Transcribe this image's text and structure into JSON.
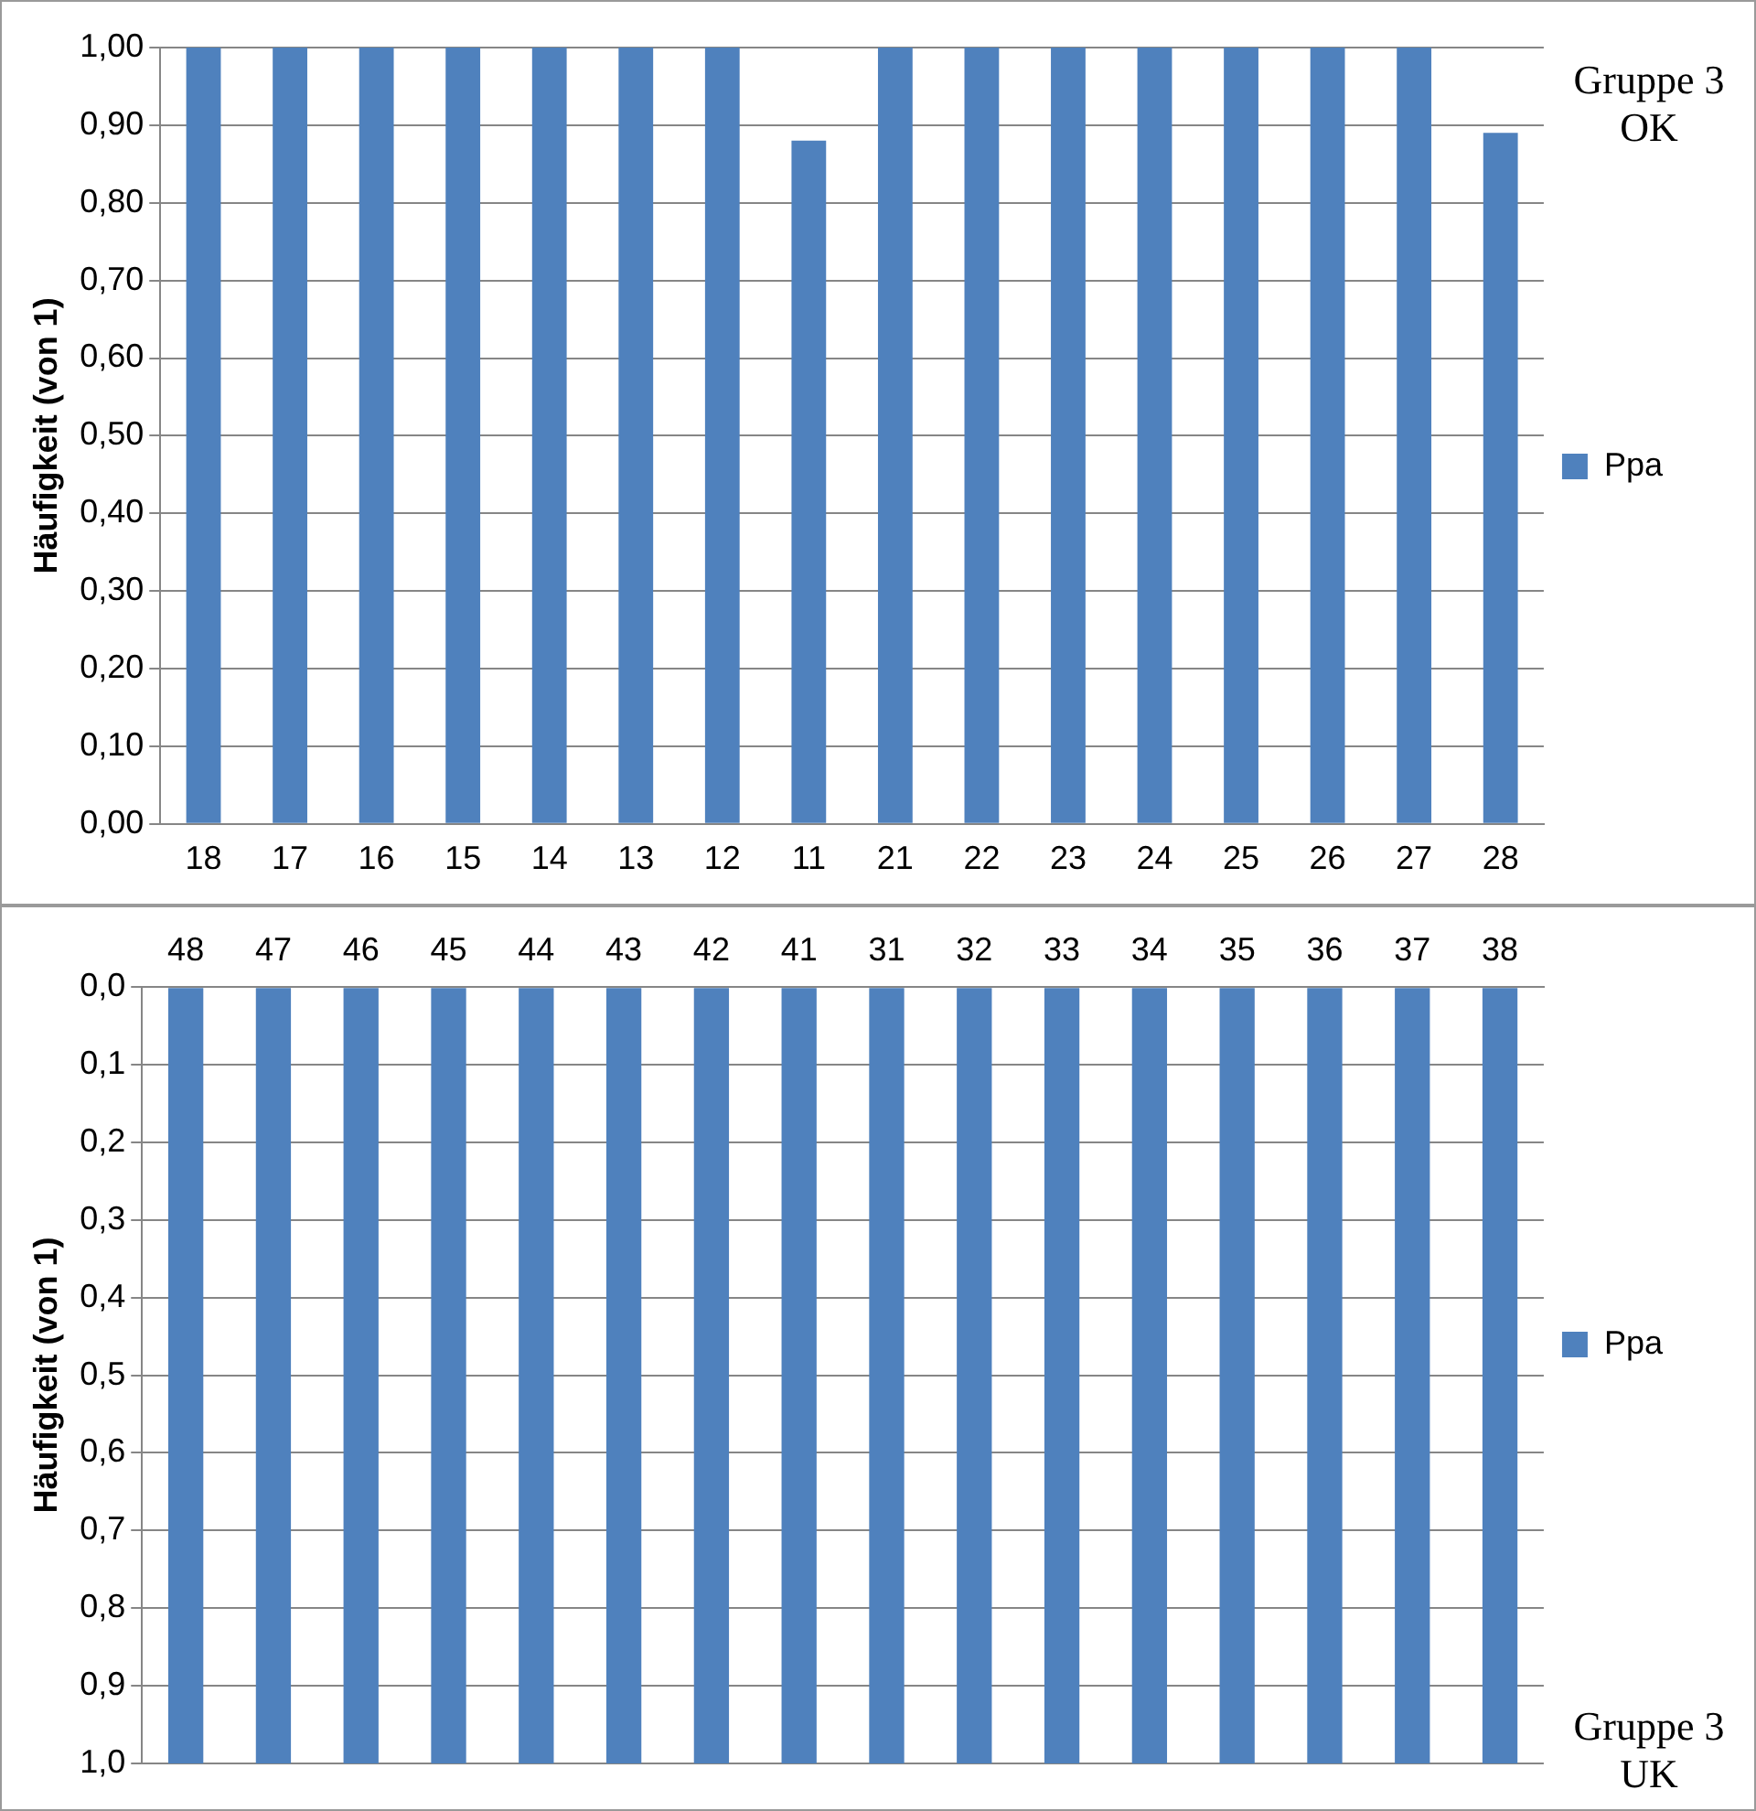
{
  "chart_data": [
    {
      "type": "bar",
      "ylabel": "Häufigkeit (von 1)",
      "categories": [
        "18",
        "17",
        "16",
        "15",
        "14",
        "13",
        "12",
        "11",
        "21",
        "22",
        "23",
        "24",
        "25",
        "26",
        "27",
        "28"
      ],
      "series": [
        {
          "name": "Ppa",
          "color": "#4f81bd",
          "values": [
            1,
            1,
            1,
            1,
            1,
            1,
            1,
            0.88,
            1,
            1,
            1,
            1,
            1,
            1,
            1,
            0.89
          ]
        }
      ],
      "ylim": [
        0,
        1
      ],
      "yticks": [
        {
          "value": 0,
          "label": "0,00"
        },
        {
          "value": 0.1,
          "label": "0,10"
        },
        {
          "value": 0.2,
          "label": "0,20"
        },
        {
          "value": 0.3,
          "label": "0,30"
        },
        {
          "value": 0.4,
          "label": "0,40"
        },
        {
          "value": 0.5,
          "label": "0,50"
        },
        {
          "value": 0.6,
          "label": "0,60"
        },
        {
          "value": 0.7,
          "label": "0,70"
        },
        {
          "value": 0.8,
          "label": "0,80"
        },
        {
          "value": 0.9,
          "label": "0,90"
        },
        {
          "value": 1,
          "label": "1,00"
        }
      ],
      "grid": "y",
      "legend": "right",
      "annotations": [
        "Gruppe 3\nOK"
      ]
    },
    {
      "type": "bar",
      "ylabel": "Häufigkeit (von 1)",
      "categories": [
        "48",
        "47",
        "46",
        "45",
        "44",
        "43",
        "42",
        "41",
        "31",
        "32",
        "33",
        "34",
        "35",
        "36",
        "37",
        "38"
      ],
      "series": [
        {
          "name": "Ppa",
          "color": "#4f81bd",
          "values": [
            1,
            1,
            1,
            1,
            1,
            1,
            1,
            1,
            1,
            1,
            1,
            1,
            1,
            1,
            1,
            1
          ]
        }
      ],
      "ylim": [
        1,
        0
      ],
      "yticks": [
        {
          "value": 0,
          "label": "0,0"
        },
        {
          "value": 0.1,
          "label": "0,1"
        },
        {
          "value": 0.2,
          "label": "0,2"
        },
        {
          "value": 0.3,
          "label": "0,3"
        },
        {
          "value": 0.4,
          "label": "0,4"
        },
        {
          "value": 0.5,
          "label": "0,5"
        },
        {
          "value": 0.6,
          "label": "0,6"
        },
        {
          "value": 0.7,
          "label": "0,7"
        },
        {
          "value": 0.8,
          "label": "0,8"
        },
        {
          "value": 0.9,
          "label": "0,9"
        },
        {
          "value": 1,
          "label": "1,0"
        }
      ],
      "grid": "y",
      "legend": "right",
      "annotations": [
        "Gruppe 3\nUK"
      ]
    }
  ]
}
